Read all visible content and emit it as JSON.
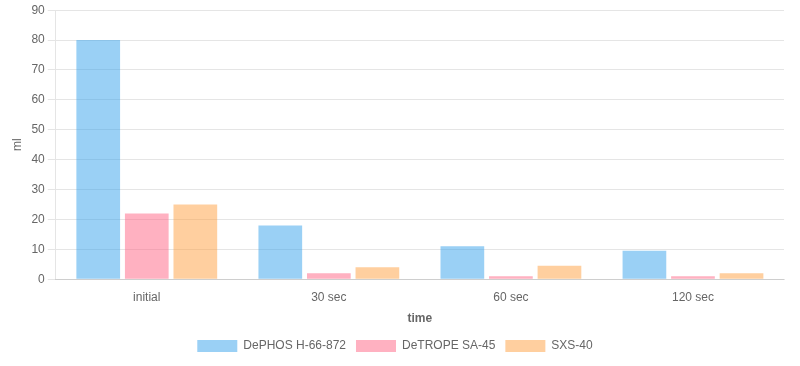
{
  "chart_data": {
    "type": "bar",
    "xlabel": "time",
    "ylabel": "ml",
    "categories": [
      "initial",
      "30 sec",
      "60 sec",
      "120 sec"
    ],
    "series": [
      {
        "name": "DePHOS H-66-872",
        "values": [
          80,
          18,
          11,
          9.5
        ]
      },
      {
        "name": "DeTROPE SA-45",
        "values": [
          22,
          2,
          1,
          1
        ]
      },
      {
        "name": "SXS-40",
        "values": [
          25,
          4,
          4.5,
          2
        ]
      }
    ],
    "ylim": [
      0,
      90
    ],
    "yticks": [
      0,
      10,
      20,
      30,
      40,
      50,
      60,
      70,
      80,
      90
    ],
    "grid": true,
    "legend": "bottom"
  }
}
